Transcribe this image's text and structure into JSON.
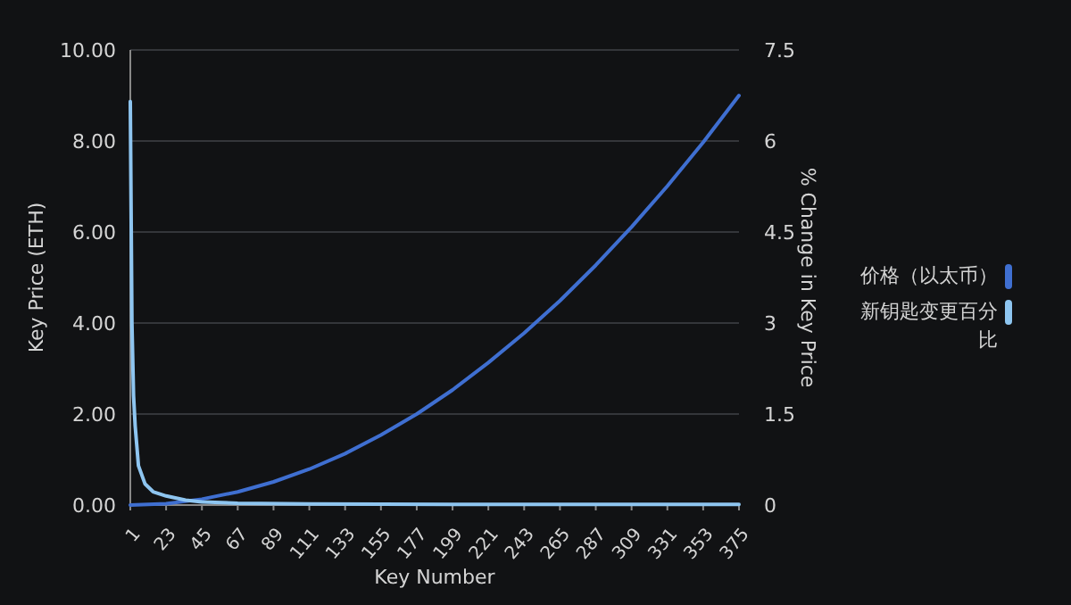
{
  "chart_data": {
    "type": "line",
    "xlabel": "Key Number",
    "ylabel": "Key Price (ETH)",
    "y2label": "% Change in Key Price",
    "series": [
      {
        "name": "价格（以太币）",
        "color": "#3f6fd1",
        "x": [
          1,
          23,
          45,
          67,
          89,
          111,
          133,
          155,
          177,
          199,
          221,
          243,
          265,
          287,
          309,
          331,
          353,
          375
        ],
        "values": [
          0,
          0.03,
          0.13,
          0.29,
          0.51,
          0.79,
          1.13,
          1.54,
          2.0,
          2.53,
          3.13,
          3.78,
          4.49,
          5.27,
          6.11,
          7.01,
          7.97,
          9.0
        ]
      },
      {
        "name": "新钥匙变更百分比",
        "color": "#8ec5f0",
        "axis": "y2",
        "x": [
          1,
          2,
          3,
          4,
          6,
          10,
          15,
          23,
          35,
          45,
          67,
          111,
          199,
          375
        ],
        "values": [
          6.65,
          3.0,
          1.8,
          1.3,
          0.65,
          0.35,
          0.22,
          0.15,
          0.08,
          0.05,
          0.03,
          0.02,
          0.01,
          0.01
        ]
      }
    ],
    "xlim": [
      1,
      375
    ],
    "xticks": [
      1,
      23,
      45,
      67,
      89,
      111,
      133,
      155,
      177,
      199,
      221,
      243,
      265,
      287,
      309,
      331,
      353,
      375
    ],
    "ylim": [
      0,
      10
    ],
    "yticks": [
      {
        "value": 0,
        "label": "0.00"
      },
      {
        "value": 2,
        "label": "2.00"
      },
      {
        "value": 4,
        "label": "4.00"
      },
      {
        "value": 6,
        "label": "6.00"
      },
      {
        "value": 8,
        "label": "8.00"
      },
      {
        "value": 10,
        "label": "10.00"
      }
    ],
    "y2lim": [
      0,
      7.5
    ],
    "y2ticks": [
      0,
      1.5,
      3,
      4.5,
      6,
      7.5
    ],
    "grid": "y",
    "legend": "right"
  }
}
